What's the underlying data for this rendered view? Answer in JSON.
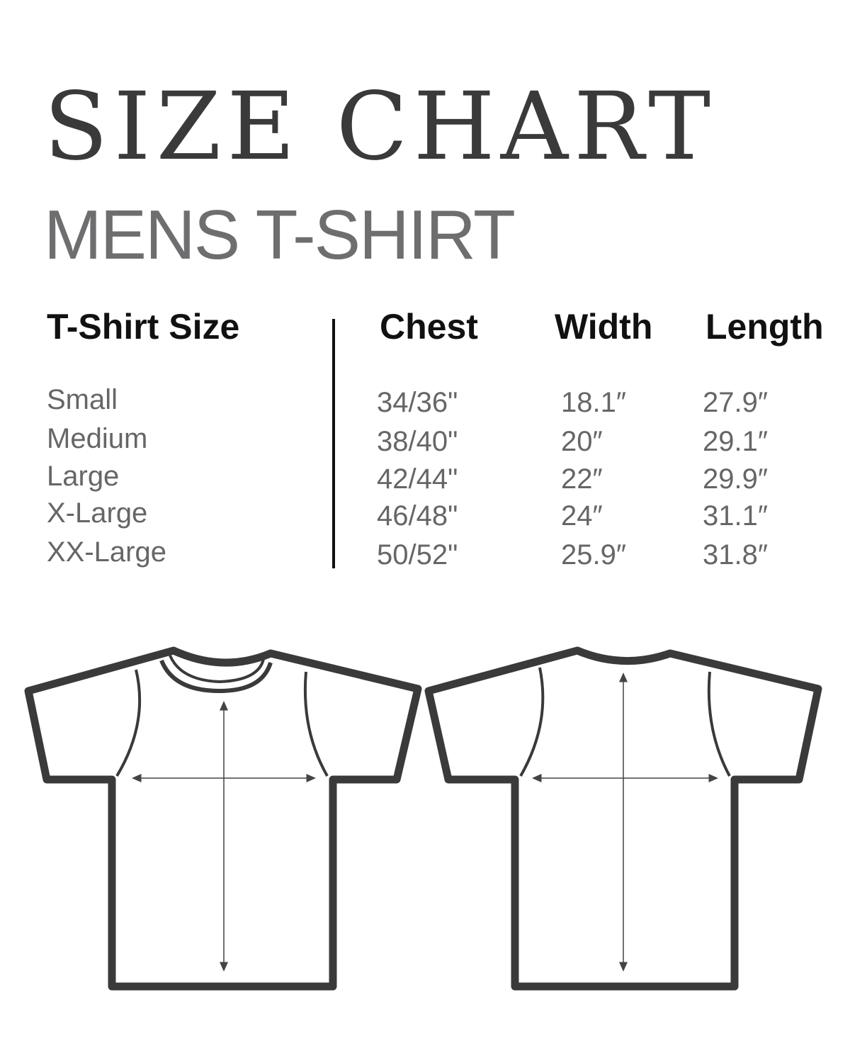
{
  "title": "SIZE CHART",
  "subtitle": "MENS T-SHIRT",
  "headers": [
    "T-Shirt Size",
    "Chest",
    "Width",
    "Length"
  ],
  "rows": [
    {
      "size": "Small",
      "chest": "34/36\"",
      "width": "18.1″",
      "length": "27.9″"
    },
    {
      "size": "Medium",
      "chest": "38/40\"",
      "width": "20″",
      "length": "29.1″"
    },
    {
      "size": "Large",
      "chest": "42/44\"",
      "width": "22″",
      "length": "29.9″"
    },
    {
      "size": "X-Large",
      "chest": "46/48\"",
      "width": "24″",
      "length": "31.1″"
    },
    {
      "size": "XX-Large",
      "chest": "50/52\"",
      "width": "25.9″",
      "length": "31.8″"
    }
  ]
}
